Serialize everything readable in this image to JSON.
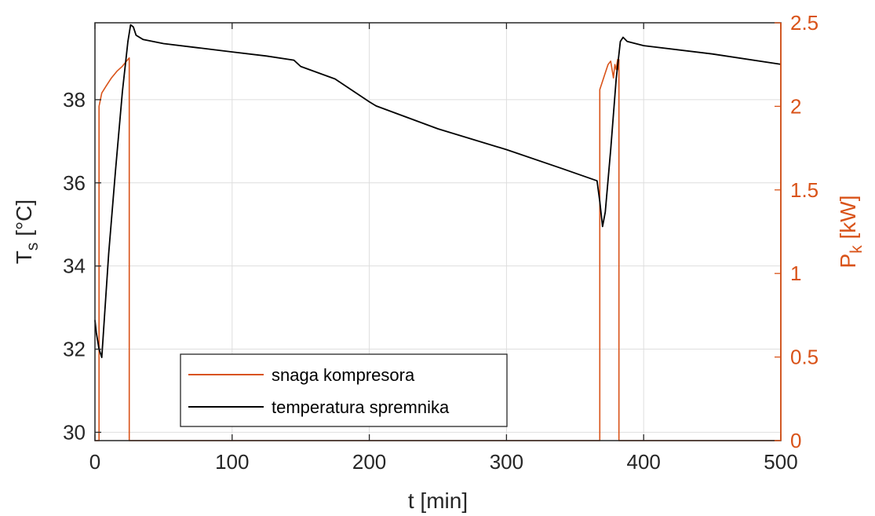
{
  "chart_data": {
    "type": "line",
    "xlabel": "t [min]",
    "ylabel_left": {
      "main": "T",
      "sub": "s",
      "unit": " [°C]"
    },
    "ylabel_right": {
      "main": "P",
      "sub": "k",
      "unit": " [kW]"
    },
    "xlim": [
      0,
      500
    ],
    "ylim_left": [
      29.8,
      39.85
    ],
    "ylim_right": [
      0,
      2.5
    ],
    "xticks": [
      0,
      100,
      200,
      300,
      400,
      500
    ],
    "xtick_labels": [
      "0",
      "100",
      "200",
      "300",
      "400",
      "500"
    ],
    "yticks_left": [
      30,
      32,
      34,
      36,
      38
    ],
    "ytick_labels_left": [
      "30",
      "32",
      "34",
      "36",
      "38"
    ],
    "yticks_right": [
      0,
      0.5,
      1,
      1.5,
      2,
      2.5
    ],
    "ytick_labels_right": [
      "0",
      "0.5",
      "1",
      "1.5",
      "2",
      "2.5"
    ],
    "grid": true,
    "legend_position": "bottom-left",
    "colors": {
      "power": "#d95319",
      "temperature": "#000000",
      "axis_right": "#d95319",
      "grid": "#dedede"
    },
    "series": [
      {
        "name": "snaga kompresora",
        "axis": "right",
        "x": [
          0,
          3,
          3,
          5,
          8,
          12,
          16,
          20,
          23,
          25,
          25,
          368,
          368,
          372,
          374,
          376,
          378,
          379,
          380,
          381,
          381,
          382,
          382,
          500
        ],
        "y": [
          0,
          0,
          2.0,
          2.08,
          2.12,
          2.17,
          2.21,
          2.24,
          2.27,
          2.29,
          0,
          0,
          2.1,
          2.2,
          2.25,
          2.27,
          2.17,
          2.25,
          2.22,
          2.28,
          2.22,
          2.28,
          0,
          0
        ]
      },
      {
        "name": "temperatura spremnika",
        "axis": "left",
        "x": [
          0,
          1,
          3,
          5,
          7,
          10,
          15,
          20,
          24,
          26,
          28,
          30,
          35,
          50,
          75,
          100,
          125,
          145,
          150,
          175,
          200,
          205,
          250,
          300,
          340,
          366,
          368,
          370,
          372,
          376,
          380,
          383,
          385,
          388,
          400,
          450,
          500
        ],
        "y": [
          32.7,
          32.4,
          32.0,
          31.8,
          32.8,
          34.3,
          36.3,
          38.2,
          39.4,
          39.8,
          39.75,
          39.55,
          39.45,
          39.35,
          39.25,
          39.15,
          39.05,
          38.95,
          38.8,
          38.5,
          37.95,
          37.85,
          37.3,
          36.8,
          36.35,
          36.05,
          35.55,
          34.95,
          35.3,
          36.8,
          38.5,
          39.4,
          39.5,
          39.4,
          39.3,
          39.1,
          38.85
        ]
      }
    ]
  }
}
